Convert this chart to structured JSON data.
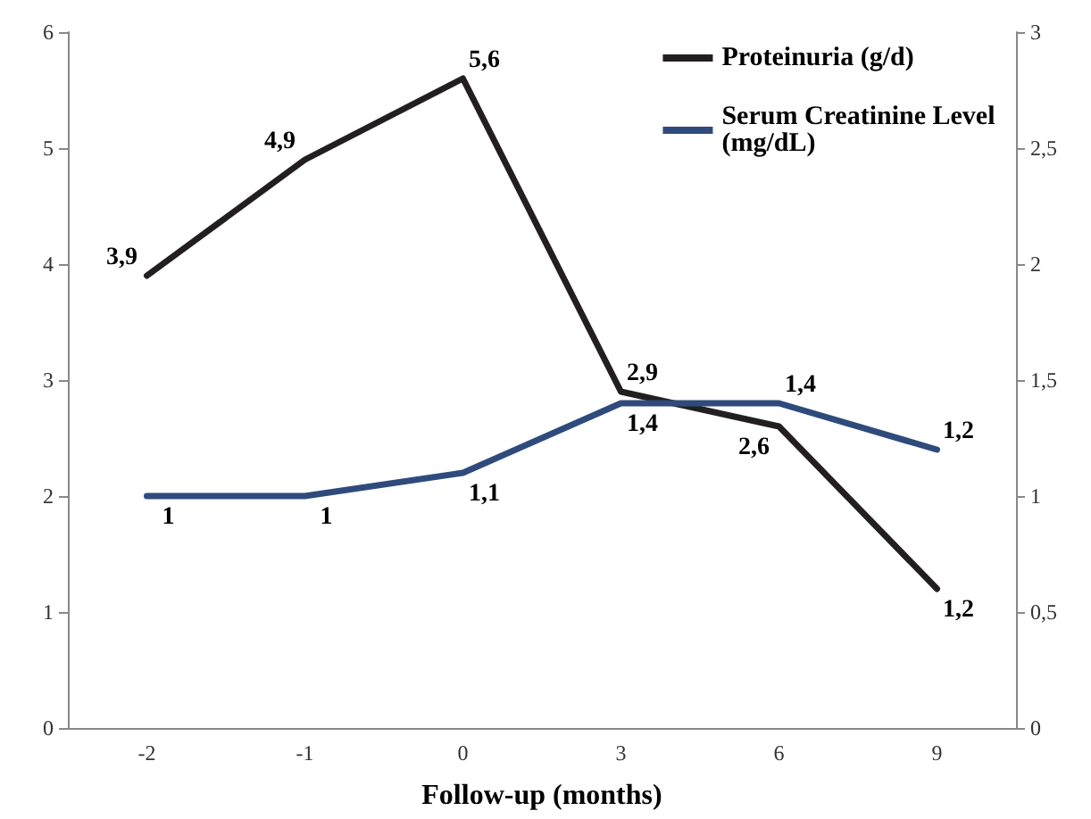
{
  "chart_data": {
    "type": "line",
    "xlabel": "Follow-up (months)",
    "categories": [
      "-2",
      "-1",
      "0",
      "3",
      "6",
      "9"
    ],
    "series": [
      {
        "name": "Proteinuria (g/d)",
        "color": "#231f20",
        "values": [
          3.9,
          4.9,
          5.6,
          2.9,
          2.6,
          1.2
        ],
        "value_labels": [
          "3,9",
          "4,9",
          "5,6",
          "2,9",
          "2,6",
          "1,2"
        ]
      },
      {
        "name": "Serum Creatinine Level (mg/dL)",
        "color": "#2f4b7c",
        "axis": "y2",
        "values": [
          1,
          1,
          1.1,
          1.4,
          1.4,
          1.2
        ],
        "value_labels": [
          "1",
          "1",
          "1,1",
          "1,4",
          "1,4",
          "1,2"
        ]
      }
    ],
    "ylim": [
      0,
      6
    ],
    "yticks": [
      0,
      1,
      2,
      3,
      4,
      5,
      6
    ],
    "y2lim": [
      0,
      3
    ],
    "y2ticks": [
      0,
      {
        "value": 0.5,
        "label": "0,5"
      },
      1,
      {
        "value": 1.5,
        "label": "1,5"
      },
      2,
      {
        "value": 2.5,
        "label": "2,5"
      },
      3
    ],
    "grid": false,
    "legend": "top right",
    "marker": "none",
    "line_style": "solid"
  }
}
